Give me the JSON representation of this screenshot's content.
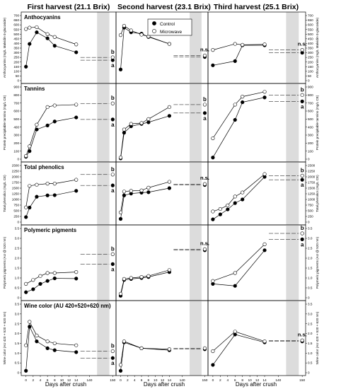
{
  "figure": {
    "column_titles": [
      "First harvest (21.1 Brix)",
      "Second harvest (23.1 Brix)",
      "Third harvest (25.1 Brix)"
    ],
    "x_axis_label": "Days after crush",
    "x_ticks": [
      "0",
      "2",
      "4",
      "6",
      "8",
      "10",
      "12",
      "14",
      "140",
      "150"
    ],
    "legend": [
      "Control",
      "Microwave"
    ]
  },
  "colors": {
    "control": "#000000",
    "microwave": "#ffffff",
    "shade": "#dcdcdc",
    "axis": "#000000"
  },
  "chart_data": [
    {
      "type": "line",
      "row": "Anthocyanins",
      "column": "First harvest (21.1 Brix)",
      "ylabel": "Anthocyanins (mg/L Malvidin-3-glucoside)",
      "ylim": [
        0,
        700
      ],
      "yticks": [
        0,
        50,
        100,
        150,
        200,
        250,
        300,
        350,
        400,
        450,
        500,
        550,
        600,
        650,
        700
      ],
      "x": [
        0,
        1,
        3,
        6,
        8,
        14,
        150
      ],
      "series": [
        {
          "name": "Control",
          "values": [
            150,
            395,
            520,
            455,
            375,
            305,
            220
          ]
        },
        {
          "name": "Microwave",
          "values": [
            555,
            570,
            575,
            500,
            470,
            390,
            250
          ]
        }
      ],
      "letters": [
        "b",
        "a"
      ],
      "grid": false
    },
    {
      "type": "line",
      "row": "Anthocyanins",
      "column": "Second harvest (23.1 Brix)",
      "ylabel": "Anthocyanins (mg/L Malvidin-3-glucoside)",
      "ylim": [
        0,
        700
      ],
      "x": [
        0,
        1,
        3,
        6,
        8,
        14,
        150
      ],
      "series": [
        {
          "name": "Control",
          "values": [
            120,
            570,
            520,
            505,
            470,
            395,
            255
          ]
        },
        {
          "name": "Microwave",
          "values": [
            490,
            590,
            540,
            495,
            475,
            395,
            270
          ]
        }
      ],
      "letters": [
        "n.s."
      ],
      "grid": false
    },
    {
      "type": "line",
      "row": "Anthocyanins",
      "column": "Third harvest (25.1 Brix)",
      "ylabel": "Anthocyanins (mg/L Malvidin-3-glucoside)",
      "ylim": [
        0,
        700
      ],
      "x": [
        0,
        6,
        8,
        14,
        150
      ],
      "series": [
        {
          "name": "Control",
          "values": [
            165,
            210,
            380,
            380,
            300
          ]
        },
        {
          "name": "Microwave",
          "values": [
            330,
            395,
            385,
            390,
            330
          ]
        }
      ],
      "letters": [
        "n.s."
      ],
      "grid": false
    },
    {
      "type": "line",
      "row": "Tannins",
      "column": "First harvest (21.1 Brix)",
      "ylabel": "Protein precipitable tannins (mg/L CE)",
      "ylim": [
        0,
        900
      ],
      "yticks": [
        0,
        100,
        200,
        300,
        400,
        500,
        600,
        700,
        800,
        900
      ],
      "x": [
        0,
        1,
        3,
        6,
        8,
        14,
        150
      ],
      "series": [
        {
          "name": "Control",
          "values": [
            30,
            100,
            370,
            420,
            470,
            520,
            495
          ]
        },
        {
          "name": "Microwave",
          "values": [
            40,
            160,
            430,
            650,
            670,
            680,
            695
          ]
        }
      ],
      "letters": [
        "b",
        "a"
      ],
      "grid": false
    },
    {
      "type": "line",
      "row": "Tannins",
      "column": "Second harvest (23.1 Brix)",
      "ylabel": "Protein precipitable tannins (mg/L CE)",
      "ylim": [
        0,
        900
      ],
      "x": [
        0,
        1,
        3,
        6,
        8,
        14,
        150
      ],
      "series": [
        {
          "name": "Control",
          "values": [
            10,
            330,
            410,
            440,
            460,
            540,
            575
          ]
        },
        {
          "name": "Microwave",
          "values": [
            20,
            370,
            440,
            450,
            500,
            650,
            680
          ]
        }
      ],
      "letters": [
        "b",
        "a"
      ],
      "grid": false
    },
    {
      "type": "line",
      "row": "Tannins",
      "column": "Third harvest (25.1 Brix)",
      "ylabel": "Protein precipitable tannins (mg/L CE)",
      "ylim": [
        0,
        900
      ],
      "x": [
        0,
        6,
        8,
        14,
        150
      ],
      "series": [
        {
          "name": "Control",
          "values": [
            20,
            490,
            710,
            770,
            720
          ]
        },
        {
          "name": "Microwave",
          "values": [
            260,
            680,
            780,
            840,
            800
          ]
        }
      ],
      "letters": [
        "b",
        "a"
      ],
      "grid": false
    },
    {
      "type": "line",
      "row": "Total phenolics",
      "column": "First harvest (21.1 Brix)",
      "ylabel": "Total phenolics (mg/L CE)",
      "ylim": [
        0,
        2500
      ],
      "yticks": [
        0,
        250,
        500,
        750,
        1000,
        1250,
        1500,
        1750,
        2000,
        2250,
        2500
      ],
      "x": [
        0,
        1,
        3,
        6,
        8,
        14,
        150
      ],
      "series": [
        {
          "name": "Control",
          "values": [
            220,
            640,
            1120,
            1180,
            1190,
            1380,
            1620
          ]
        },
        {
          "name": "Microwave",
          "values": [
            650,
            1600,
            1650,
            1700,
            1700,
            1870,
            2100
          ]
        }
      ],
      "letters": [
        "b",
        "a"
      ],
      "grid": false
    },
    {
      "type": "line",
      "row": "Total phenolics",
      "column": "Second harvest (23.1 Brix)",
      "ylabel": "Total phenolics (mg/L CE)",
      "ylim": [
        0,
        2500
      ],
      "x": [
        0,
        1,
        3,
        6,
        8,
        14,
        150
      ],
      "series": [
        {
          "name": "Control",
          "values": [
            140,
            1180,
            1260,
            1300,
            1320,
            1500,
            1640
          ]
        },
        {
          "name": "Microwave",
          "values": [
            430,
            1350,
            1380,
            1400,
            1520,
            1780,
            1680
          ]
        }
      ],
      "letters": [
        "n.s."
      ],
      "grid": false
    },
    {
      "type": "line",
      "row": "Total phenolics",
      "column": "Third harvest (25.1 Brix)",
      "ylabel": "Total phenolics (mg/L CE)",
      "ylim": [
        0,
        2500
      ],
      "x": [
        0,
        2,
        4,
        6,
        8,
        14,
        150
      ],
      "series": [
        {
          "name": "Control",
          "values": [
            120,
            340,
            560,
            840,
            1000,
            2000,
            1870
          ]
        },
        {
          "name": "Microwave",
          "values": [
            470,
            580,
            740,
            1130,
            1310,
            2120,
            2050
          ]
        }
      ],
      "letters": [
        "b",
        "a"
      ],
      "grid": false
    },
    {
      "type": "line",
      "row": "Polymeric pigments",
      "column": "First harvest (21.1 Brix)",
      "ylabel": "Polymeric pigments (AU @ 520 nm)",
      "ylim": [
        0,
        3.5
      ],
      "yticks": [
        0,
        0.5,
        1.0,
        1.5,
        2.0,
        2.5,
        3.0,
        3.5
      ],
      "x": [
        0,
        2,
        4,
        6,
        8,
        14,
        150
      ],
      "series": [
        {
          "name": "Control",
          "values": [
            0.28,
            0.43,
            0.7,
            0.85,
            0.98,
            0.97,
            1.7
          ]
        },
        {
          "name": "Microwave",
          "values": [
            0.7,
            0.9,
            1.1,
            1.25,
            1.25,
            1.3,
            2.2
          ]
        }
      ],
      "letters": [
        "b",
        "a"
      ],
      "grid": false
    },
    {
      "type": "line",
      "row": "Polymeric pigments",
      "column": "Second harvest (23.1 Brix)",
      "ylabel": "Polymeric pigments (AU @ 520 nm)",
      "ylim": [
        0,
        3.5
      ],
      "x": [
        0,
        1,
        3,
        6,
        8,
        14,
        150
      ],
      "series": [
        {
          "name": "Control",
          "values": [
            0.1,
            0.9,
            0.95,
            1.0,
            1.05,
            1.3,
            2.4
          ]
        },
        {
          "name": "Microwave",
          "values": [
            0.2,
            0.95,
            1.0,
            1.05,
            1.1,
            1.4,
            2.45
          ]
        }
      ],
      "letters": [
        "n.s."
      ],
      "grid": false
    },
    {
      "type": "line",
      "row": "Polymeric pigments",
      "column": "Third harvest (25.1 Brix)",
      "ylabel": "Polymeric pigments (AU @ 520 nm)",
      "ylim": [
        0,
        3.5
      ],
      "x": [
        0,
        6,
        14,
        150
      ],
      "series": [
        {
          "name": "Control",
          "values": [
            0.7,
            0.6,
            2.4,
            2.95
          ]
        },
        {
          "name": "Microwave",
          "values": [
            0.85,
            1.25,
            2.7,
            3.25
          ]
        }
      ],
      "letters": [
        "b",
        "a"
      ],
      "grid": false
    },
    {
      "type": "line",
      "row": "Wine color",
      "column": "First harvest (21.1 Brix)",
      "ylabel": "Wine color (AU 420 + 520 + 620 nm)",
      "title": "Wine color (AU 420+520+620 nm)",
      "ylim": [
        0,
        3.5
      ],
      "yticks": [
        0,
        0.5,
        1.0,
        1.5,
        2.0,
        2.5,
        3.0,
        3.5
      ],
      "x": [
        0,
        1,
        3,
        6,
        8,
        14,
        150
      ],
      "series": [
        {
          "name": "Control",
          "values": [
            0.1,
            2.35,
            1.6,
            1.25,
            1.15,
            1.05,
            0.75
          ]
        },
        {
          "name": "Microwave",
          "values": [
            1.4,
            2.6,
            1.9,
            1.6,
            1.5,
            1.4,
            1.1
          ]
        }
      ],
      "letters": [
        "b",
        "a"
      ],
      "grid": false
    },
    {
      "type": "line",
      "row": "Wine color",
      "column": "Second harvest (23.1 Brix)",
      "ylabel": "Wine color (AU 420 + 520 + 620 nm)",
      "ylim": [
        0,
        3.5
      ],
      "x": [
        0,
        1,
        6,
        14,
        150
      ],
      "series": [
        {
          "name": "Control",
          "values": [
            0.1,
            1.55,
            1.25,
            1.15,
            1.2
          ]
        },
        {
          "name": "Microwave",
          "values": [
            0.4,
            1.6,
            1.25,
            1.2,
            1.25
          ]
        }
      ],
      "letters": [],
      "grid": false
    },
    {
      "type": "line",
      "row": "Wine color",
      "column": "Third harvest (25.1 Brix)",
      "ylabel": "Wine color (AU 420 + 520 + 620 nm)",
      "ylim": [
        0,
        3.5
      ],
      "x": [
        0,
        6,
        14,
        150
      ],
      "series": [
        {
          "name": "Control",
          "values": [
            0.4,
            1.95,
            1.55,
            1.6
          ]
        },
        {
          "name": "Microwave",
          "values": [
            1.1,
            2.1,
            1.6,
            1.65
          ]
        }
      ],
      "letters": [
        "n.s."
      ],
      "grid": false
    }
  ]
}
